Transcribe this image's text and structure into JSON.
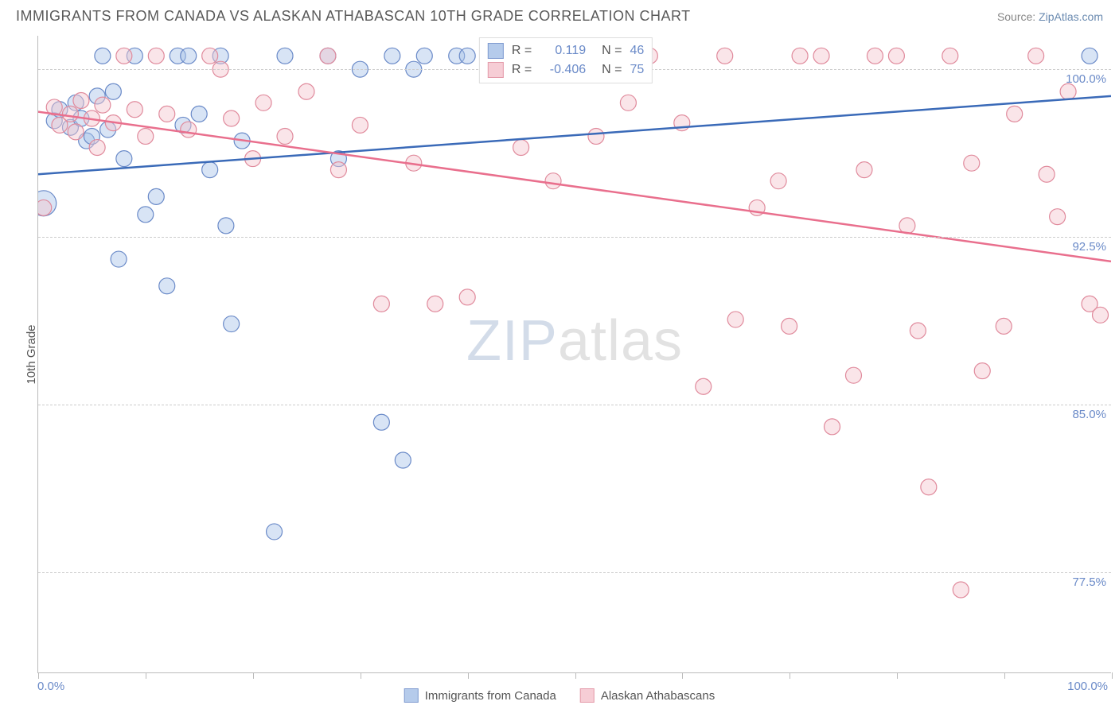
{
  "title": "IMMIGRANTS FROM CANADA VS ALASKAN ATHABASCAN 10TH GRADE CORRELATION CHART",
  "source_label": "Source:",
  "source_name": "ZipAtlas.com",
  "y_axis_label": "10th Grade",
  "watermark_zip": "ZIP",
  "watermark_atlas": "atlas",
  "chart": {
    "type": "scatter",
    "xlim": [
      0,
      100
    ],
    "ylim": [
      73,
      101.5
    ],
    "x_ticks": [
      0,
      10,
      20,
      30,
      40,
      50,
      60,
      70,
      80,
      90,
      100
    ],
    "x_labels": {
      "0": "0.0%",
      "100": "100.0%"
    },
    "y_gridlines": [
      77.5,
      85.0,
      92.5,
      100.0
    ],
    "y_grid_labels": [
      "77.5%",
      "85.0%",
      "92.5%",
      "100.0%"
    ],
    "background_color": "#ffffff",
    "grid_color": "#cccccc",
    "axis_color": "#bbbbbb",
    "tick_label_color": "#6a8ac8",
    "marker_radius": 10,
    "marker_stroke_width": 1.2,
    "series": [
      {
        "name": "Immigrants from Canada",
        "fill": "#a9c3e8",
        "fill_opacity": 0.45,
        "stroke": "#6a8ac8",
        "R": "0.119",
        "N": "46",
        "trend": {
          "x1": 0,
          "y1": 95.3,
          "x2": 100,
          "y2": 98.8,
          "stroke": "#3a6ab8",
          "width": 2.5
        },
        "points": [
          [
            0.5,
            94.0,
            16
          ],
          [
            1.5,
            97.7
          ],
          [
            2.0,
            98.2
          ],
          [
            3.0,
            97.4
          ],
          [
            3.5,
            98.5
          ],
          [
            4.0,
            97.8
          ],
          [
            4.5,
            96.8
          ],
          [
            5.0,
            97.0
          ],
          [
            5.5,
            98.8
          ],
          [
            6.0,
            100.6
          ],
          [
            6.5,
            97.3
          ],
          [
            7.0,
            99.0
          ],
          [
            7.5,
            91.5
          ],
          [
            8.0,
            96.0
          ],
          [
            9.0,
            100.6
          ],
          [
            10.0,
            93.5
          ],
          [
            11.0,
            94.3
          ],
          [
            12.0,
            90.3
          ],
          [
            13.0,
            100.6
          ],
          [
            13.5,
            97.5
          ],
          [
            14.0,
            100.6
          ],
          [
            15.0,
            98.0
          ],
          [
            16.0,
            95.5
          ],
          [
            17.0,
            100.6
          ],
          [
            17.5,
            93.0
          ],
          [
            18.0,
            88.6
          ],
          [
            19.0,
            96.8
          ],
          [
            22.0,
            79.3
          ],
          [
            23.0,
            100.6
          ],
          [
            27.0,
            100.6
          ],
          [
            28.0,
            96.0
          ],
          [
            30.0,
            100.0
          ],
          [
            32.0,
            84.2
          ],
          [
            33.0,
            100.6
          ],
          [
            34.0,
            82.5
          ],
          [
            35.0,
            100.0
          ],
          [
            36.0,
            100.6
          ],
          [
            39.0,
            100.6
          ],
          [
            40.0,
            100.6
          ],
          [
            43.0,
            100.6
          ],
          [
            98.0,
            100.6
          ]
        ]
      },
      {
        "name": "Alaskan Athabascans",
        "fill": "#f5c5ce",
        "fill_opacity": 0.45,
        "stroke": "#e08a9c",
        "R": "-0.406",
        "N": "75",
        "trend": {
          "x1": 0,
          "y1": 98.1,
          "x2": 100,
          "y2": 91.4,
          "stroke": "#e96f8d",
          "width": 2.5
        },
        "points": [
          [
            0.5,
            93.8
          ],
          [
            1.5,
            98.3
          ],
          [
            2.0,
            97.5
          ],
          [
            3.0,
            98.0
          ],
          [
            3.5,
            97.2
          ],
          [
            4.0,
            98.6
          ],
          [
            5.0,
            97.8
          ],
          [
            5.5,
            96.5
          ],
          [
            6.0,
            98.4
          ],
          [
            7.0,
            97.6
          ],
          [
            8.0,
            100.6
          ],
          [
            9.0,
            98.2
          ],
          [
            10.0,
            97.0
          ],
          [
            11.0,
            100.6
          ],
          [
            12.0,
            98.0
          ],
          [
            14.0,
            97.3
          ],
          [
            16.0,
            100.6
          ],
          [
            17.0,
            100.0
          ],
          [
            18.0,
            97.8
          ],
          [
            20.0,
            96.0
          ],
          [
            21.0,
            98.5
          ],
          [
            23.0,
            97.0
          ],
          [
            25.0,
            99.0
          ],
          [
            27.0,
            100.6
          ],
          [
            28.0,
            95.5
          ],
          [
            30.0,
            97.5
          ],
          [
            32.0,
            89.5
          ],
          [
            35.0,
            95.8
          ],
          [
            37.0,
            89.5
          ],
          [
            40.0,
            89.8
          ],
          [
            42.0,
            100.6
          ],
          [
            45.0,
            96.5
          ],
          [
            48.0,
            95.0
          ],
          [
            50.0,
            100.6
          ],
          [
            52.0,
            97.0
          ],
          [
            55.0,
            98.5
          ],
          [
            57.0,
            100.6
          ],
          [
            60.0,
            97.6
          ],
          [
            62.0,
            85.8
          ],
          [
            64.0,
            100.6
          ],
          [
            65.0,
            88.8
          ],
          [
            67.0,
            93.8
          ],
          [
            69.0,
            95.0
          ],
          [
            70.0,
            88.5
          ],
          [
            71.0,
            100.6
          ],
          [
            73.0,
            100.6
          ],
          [
            74.0,
            84.0
          ],
          [
            76.0,
            86.3
          ],
          [
            77.0,
            95.5
          ],
          [
            78.0,
            100.6
          ],
          [
            80.0,
            100.6
          ],
          [
            81.0,
            93.0
          ],
          [
            82.0,
            88.3
          ],
          [
            83.0,
            81.3
          ],
          [
            85.0,
            100.6
          ],
          [
            86.0,
            76.7
          ],
          [
            87.0,
            95.8
          ],
          [
            88.0,
            86.5
          ],
          [
            90.0,
            88.5
          ],
          [
            91.0,
            98.0
          ],
          [
            93.0,
            100.6
          ],
          [
            94.0,
            95.3
          ],
          [
            95.0,
            93.4
          ],
          [
            96.0,
            99.0
          ],
          [
            98.0,
            89.5
          ],
          [
            99.0,
            89.0
          ]
        ]
      }
    ]
  },
  "legend_top": {
    "R_label": "R =",
    "N_label": "N ="
  },
  "bottom_x_left": "0.0%",
  "bottom_x_right": "100.0%"
}
